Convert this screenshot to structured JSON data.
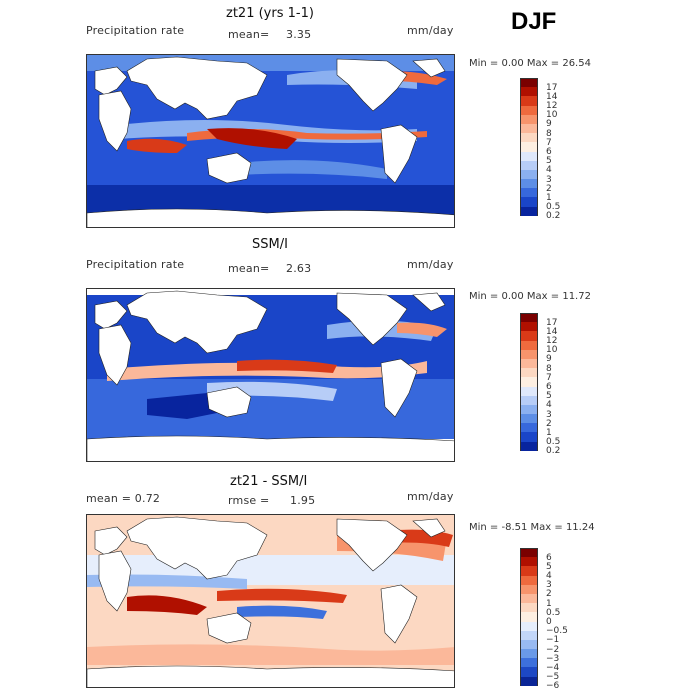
{
  "season": "DJF",
  "panels": [
    {
      "title": "zt21 (yrs 1-1)",
      "left_label": "Precipitation rate",
      "mid_label": "mean=",
      "mid_value": "3.35",
      "units": "mm/day",
      "minmax": "Min =    0.00 Max =   26.54",
      "levels": [
        "17",
        "14",
        "12",
        "10",
        "9",
        "8",
        "7",
        "6",
        "5",
        "4",
        "3",
        "2",
        "1",
        "0.5",
        "0.2"
      ],
      "colors": [
        "#7a0000",
        "#b01000",
        "#d93a18",
        "#ef6a3e",
        "#f7946c",
        "#fbb89a",
        "#fcd8c2",
        "#fdefe2",
        "#dfe8fb",
        "#b7cdf7",
        "#8bb0f0",
        "#5d8ee6",
        "#3768dc",
        "#1a45c8",
        "#08249e"
      ]
    },
    {
      "title": "SSM/I",
      "left_label": "Precipitation rate",
      "mid_label": "mean=",
      "mid_value": "2.63",
      "units": "mm/day",
      "minmax": "Min =    0.00 Max =   11.72",
      "levels": [
        "17",
        "14",
        "12",
        "10",
        "9",
        "8",
        "7",
        "6",
        "5",
        "4",
        "3",
        "2",
        "1",
        "0.5",
        "0.2"
      ],
      "colors": [
        "#7a0000",
        "#b01000",
        "#d93a18",
        "#ef6a3e",
        "#f7946c",
        "#fbb89a",
        "#fcd8c2",
        "#fdefe2",
        "#dfe8fb",
        "#b7cdf7",
        "#8bb0f0",
        "#5d8ee6",
        "#3768dc",
        "#1a45c8",
        "#08249e"
      ]
    },
    {
      "title": "zt21 - SSM/I",
      "left_label": "mean =    0.72",
      "mid_label": "rmse =",
      "mid_value": "1.95",
      "units": "mm/day",
      "minmax": "Min =  -8.51 Max =   11.24",
      "levels": [
        "6",
        "5",
        "4",
        "3",
        "2",
        "1",
        "0.5",
        "0",
        "−0.5",
        "−1",
        "−2",
        "−3",
        "−4",
        "−5",
        "−6"
      ],
      "colors": [
        "#7a0000",
        "#b01000",
        "#d93a18",
        "#ef6a3e",
        "#f7946c",
        "#fbb89a",
        "#fcd8c2",
        "#fdefe2",
        "#e6eefc",
        "#c2d6f8",
        "#98baf2",
        "#6a9ae8",
        "#3d70dc",
        "#1d48c4",
        "#0a2596"
      ]
    }
  ]
}
